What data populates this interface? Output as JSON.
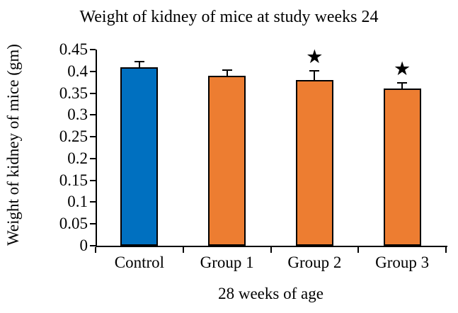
{
  "chart_data": {
    "type": "bar",
    "title": "Weight of kidney of mice at study weeks 24",
    "ylabel": "Weight of kidney of mice (gm)",
    "xlabel": "28 weeks of age",
    "categories": [
      "Control",
      "Group 1",
      "Group 2",
      "Group 3"
    ],
    "values": [
      0.41,
      0.39,
      0.38,
      0.36
    ],
    "errors": [
      0.013,
      0.013,
      0.021,
      0.013
    ],
    "significance": [
      false,
      false,
      true,
      true
    ],
    "significance_marker": "★",
    "bar_colors": [
      "#0070C0",
      "#ED7D31",
      "#ED7D31",
      "#ED7D31"
    ],
    "bar_outline_color": "#000000",
    "axis_color": "#000000",
    "text_color": "#000000",
    "ylim": [
      0,
      0.45
    ],
    "ytick_step": 0.05,
    "ytick_labels": [
      "0.45",
      "0.4",
      "0.35",
      "0.3",
      "0.25",
      "0.2",
      "0.15",
      "0.1",
      "0.05",
      "0"
    ],
    "grid": false,
    "legend": "none",
    "error_bar_direction": "plus"
  }
}
